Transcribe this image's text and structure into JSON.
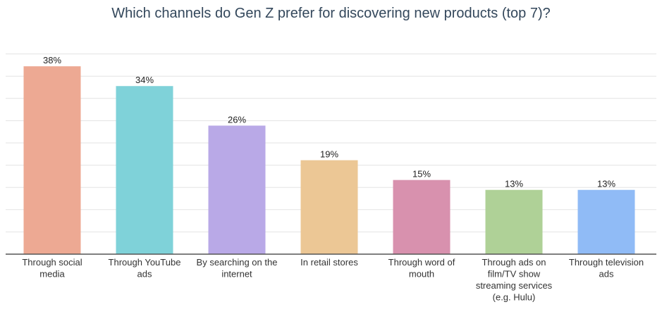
{
  "chart_data": {
    "type": "bar",
    "title": "Which channels do Gen Z prefer for discovering new products (top 7)?",
    "categories": [
      [
        "Through social",
        "media"
      ],
      [
        "Through YouTube",
        "ads"
      ],
      [
        "By searching on the",
        "internet"
      ],
      [
        "In retail stores"
      ],
      [
        "Through word of",
        "mouth"
      ],
      [
        "Through ads on",
        "film/TV show",
        "streaming services",
        "(e.g. Hulu)"
      ],
      [
        "Through television",
        "ads"
      ]
    ],
    "values": [
      38,
      34,
      26,
      19,
      15,
      13,
      13
    ],
    "value_labels": [
      "38%",
      "34%",
      "26%",
      "19%",
      "15%",
      "13%",
      "13%"
    ],
    "colors": [
      "#eda993",
      "#7fd2d9",
      "#b9a9e7",
      "#ecc795",
      "#d891ae",
      "#afd197",
      "#90bbf6"
    ],
    "ylim": [
      0,
      45
    ],
    "grid": true,
    "gridline_color": "#e3e3e3",
    "axis_color": "#555555"
  }
}
